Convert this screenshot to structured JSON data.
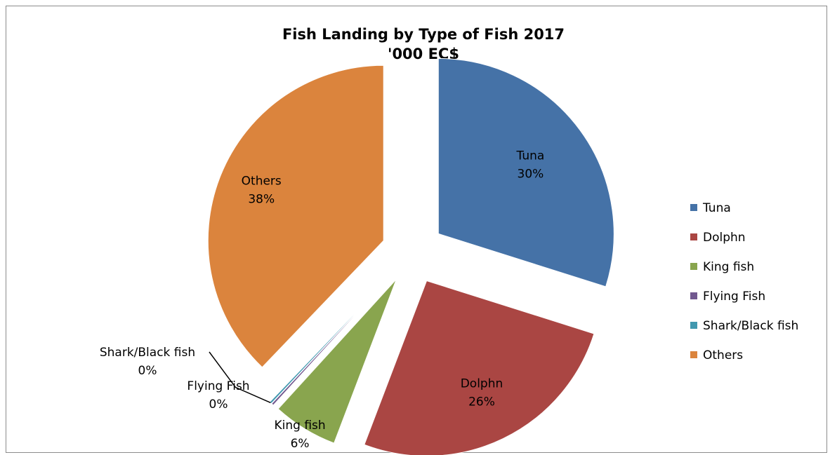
{
  "chart_data": {
    "type": "pie",
    "title": "Fish Landing by Type of Fish 2017",
    "subtitle": "'000 EC$",
    "legend_position": "right",
    "categories": [
      "Tuna",
      "Dolphn",
      "King fish",
      "Flying Fish",
      "Shark/Black fish",
      "Others"
    ],
    "values": [
      30,
      26,
      6,
      0.2,
      0.2,
      38
    ],
    "percent_labels": [
      "30%",
      "26%",
      "6%",
      "0%",
      "0%",
      "38%"
    ],
    "colors": [
      "#4572a7",
      "#aa4643",
      "#89a54e",
      "#71588f",
      "#4198af",
      "#db843d"
    ],
    "exploded": true
  }
}
